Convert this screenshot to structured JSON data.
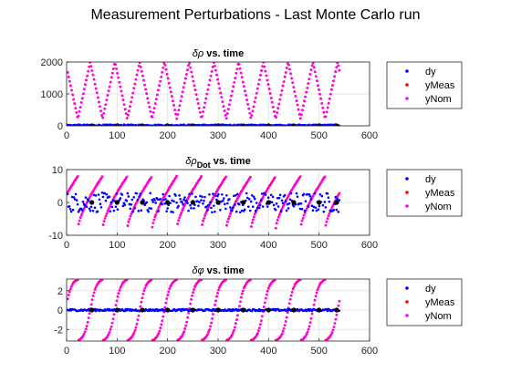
{
  "figure": {
    "title": "Measurement Perturbations - Last Monte Carlo run"
  },
  "chart_data": [
    {
      "type": "scatter",
      "title_symbol": "δρ",
      "title_sub": "",
      "title_rest": " vs. time",
      "xlim": [
        0,
        600
      ],
      "ylim": [
        0,
        2000
      ],
      "xticks": [
        0,
        100,
        200,
        300,
        400,
        500,
        600
      ],
      "yticks": [
        0,
        1000,
        2000
      ],
      "grid": true,
      "legend_position": "outside-right",
      "legend": [
        "dy",
        "yMeas",
        "yNom"
      ],
      "pattern": "triangle",
      "pattern_period": 49,
      "pattern_min": 220,
      "pattern_max": 2000,
      "dy_range": [
        0,
        40
      ],
      "x_range": [
        2,
        540
      ],
      "samples_per_series": 280,
      "black_marker_x": [
        50,
        100,
        150,
        200,
        250,
        300,
        350,
        400,
        450,
        500,
        535
      ],
      "black_marker_y": 0,
      "colors": {
        "dy": "#0000ff",
        "yMeas": "#ff0000",
        "yNom": "#ff00ff",
        "marker": "#000000"
      }
    },
    {
      "type": "scatter",
      "title_symbol": "δρ",
      "title_sub": "Dot",
      "title_rest": " vs. time",
      "xlim": [
        0,
        600
      ],
      "ylim": [
        -10,
        10
      ],
      "xticks": [
        0,
        100,
        200,
        300,
        400,
        500,
        600
      ],
      "yticks": [
        -10,
        0,
        10
      ],
      "grid": true,
      "legend_position": "outside-right",
      "legend": [
        "dy",
        "yMeas",
        "yNom"
      ],
      "pattern": "sawtooth",
      "pattern_period": 49,
      "pattern_min": -8,
      "pattern_max": 8,
      "dy_range": [
        -3,
        3
      ],
      "x_range": [
        2,
        540
      ],
      "samples_per_series": 300,
      "black_marker_x": [
        50,
        100,
        150,
        200,
        250,
        300,
        350,
        400,
        450,
        500,
        535
      ],
      "black_marker_y": 0,
      "colors": {
        "dy": "#0000ff",
        "yMeas": "#ff0000",
        "yNom": "#ff00ff",
        "marker": "#000000"
      }
    },
    {
      "type": "scatter",
      "title_symbol": "δφ",
      "title_sub": "",
      "title_rest": " vs. time",
      "xlim": [
        0,
        600
      ],
      "ylim": [
        -3.2,
        3.2
      ],
      "xticks": [
        0,
        100,
        200,
        300,
        400,
        500,
        600
      ],
      "yticks": [
        -2,
        0,
        2
      ],
      "grid": true,
      "legend_position": "outside-right",
      "legend": [
        "dy",
        "yMeas",
        "yNom"
      ],
      "pattern": "wrap",
      "pattern_period": 49,
      "pattern_min": -3.14,
      "pattern_max": 3.14,
      "dy_range": [
        -0.1,
        0.1
      ],
      "x_range": [
        2,
        540
      ],
      "samples_per_series": 300,
      "black_marker_x": [
        50,
        100,
        150,
        200,
        250,
        300,
        350,
        400,
        450,
        500,
        535
      ],
      "black_marker_y": 0,
      "colors": {
        "dy": "#0000ff",
        "yMeas": "#ff0000",
        "yNom": "#ff00ff",
        "marker": "#000000"
      }
    }
  ]
}
